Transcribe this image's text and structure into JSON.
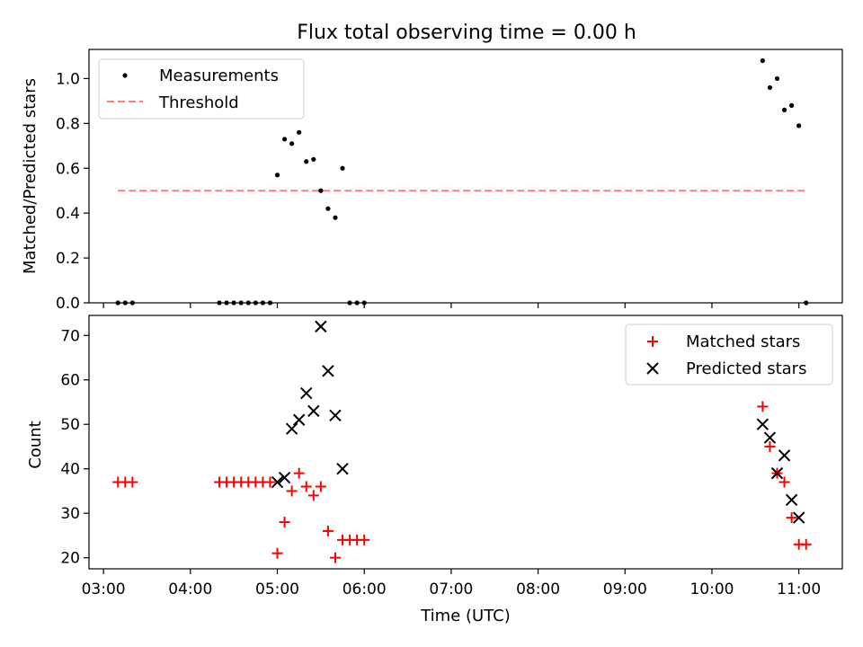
{
  "chart_data": [
    {
      "type": "scatter",
      "title": "Flux total observing time = 0.00 h",
      "xlabel": "",
      "ylabel": "Matched/Predicted stars",
      "ylim": [
        0.0,
        1.13
      ],
      "yticks": [
        0.0,
        0.2,
        0.4,
        0.6,
        0.8,
        1.0
      ],
      "ytick_labels": [
        "0.0",
        "0.2",
        "0.4",
        "0.6",
        "0.8",
        "1.0"
      ],
      "legend": "top-left",
      "grid": false,
      "series": [
        {
          "name": "Measurements",
          "marker": "dot",
          "color": "#000000",
          "points": [
            [
              "03:10",
              0.0
            ],
            [
              "03:15",
              0.0
            ],
            [
              "03:20",
              0.0
            ],
            [
              "04:20",
              0.0
            ],
            [
              "04:25",
              0.0
            ],
            [
              "04:30",
              0.0
            ],
            [
              "04:35",
              0.0
            ],
            [
              "04:40",
              0.0
            ],
            [
              "04:45",
              0.0
            ],
            [
              "04:50",
              0.0
            ],
            [
              "04:55",
              0.0
            ],
            [
              "05:00",
              0.57
            ],
            [
              "05:05",
              0.73
            ],
            [
              "05:10",
              0.71
            ],
            [
              "05:15",
              0.76
            ],
            [
              "05:20",
              0.63
            ],
            [
              "05:25",
              0.64
            ],
            [
              "05:30",
              0.5
            ],
            [
              "05:35",
              0.42
            ],
            [
              "05:40",
              0.38
            ],
            [
              "05:45",
              0.6
            ],
            [
              "05:50",
              0.0
            ],
            [
              "05:55",
              0.0
            ],
            [
              "06:00",
              0.0
            ],
            [
              "10:35",
              1.08
            ],
            [
              "10:40",
              0.96
            ],
            [
              "10:45",
              1.0
            ],
            [
              "10:50",
              0.86
            ],
            [
              "10:55",
              0.88
            ],
            [
              "11:00",
              0.79
            ],
            [
              "11:05",
              0.0
            ]
          ]
        },
        {
          "name": "Threshold",
          "type": "line",
          "style": "dashed",
          "color": "#ff7f7f",
          "points": [
            [
              "03:10",
              0.5
            ],
            [
              "11:05",
              0.5
            ]
          ]
        }
      ]
    },
    {
      "type": "scatter",
      "title": "",
      "xlabel": "Time (UTC)",
      "ylabel": "Count",
      "xlim": [
        "02:50",
        "11:30"
      ],
      "xticks": [
        "03:00",
        "04:00",
        "05:00",
        "06:00",
        "07:00",
        "08:00",
        "09:00",
        "10:00",
        "11:00"
      ],
      "ylim": [
        17.5,
        74.5
      ],
      "yticks": [
        20,
        30,
        40,
        50,
        60,
        70
      ],
      "ytick_labels": [
        "20",
        "30",
        "40",
        "50",
        "60",
        "70"
      ],
      "legend": "top-right",
      "grid": false,
      "series": [
        {
          "name": "Matched stars",
          "marker": "plus",
          "color": "#ff0000",
          "points": [
            [
              "03:10",
              37
            ],
            [
              "03:15",
              37
            ],
            [
              "03:20",
              37
            ],
            [
              "04:20",
              37
            ],
            [
              "04:25",
              37
            ],
            [
              "04:30",
              37
            ],
            [
              "04:35",
              37
            ],
            [
              "04:40",
              37
            ],
            [
              "04:45",
              37
            ],
            [
              "04:50",
              37
            ],
            [
              "04:55",
              37
            ],
            [
              "05:00",
              21
            ],
            [
              "05:05",
              28
            ],
            [
              "05:10",
              35
            ],
            [
              "05:15",
              39
            ],
            [
              "05:20",
              36
            ],
            [
              "05:25",
              34
            ],
            [
              "05:30",
              36
            ],
            [
              "05:35",
              26
            ],
            [
              "05:40",
              20
            ],
            [
              "05:45",
              24
            ],
            [
              "05:50",
              24
            ],
            [
              "05:55",
              24
            ],
            [
              "06:00",
              24
            ],
            [
              "10:35",
              54
            ],
            [
              "10:40",
              45
            ],
            [
              "10:45",
              39
            ],
            [
              "10:50",
              37
            ],
            [
              "10:55",
              29
            ],
            [
              "11:00",
              23
            ],
            [
              "11:05",
              23
            ]
          ]
        },
        {
          "name": "Predicted stars",
          "marker": "x",
          "color": "#000000",
          "points": [
            [
              "05:00",
              37
            ],
            [
              "05:05",
              38
            ],
            [
              "05:10",
              49
            ],
            [
              "05:15",
              51
            ],
            [
              "05:20",
              57
            ],
            [
              "05:25",
              53
            ],
            [
              "05:30",
              72
            ],
            [
              "05:35",
              62
            ],
            [
              "05:40",
              52
            ],
            [
              "05:45",
              40
            ],
            [
              "10:35",
              50
            ],
            [
              "10:40",
              47
            ],
            [
              "10:45",
              39
            ],
            [
              "10:50",
              43
            ],
            [
              "10:55",
              33
            ],
            [
              "11:00",
              29
            ]
          ]
        }
      ]
    }
  ]
}
